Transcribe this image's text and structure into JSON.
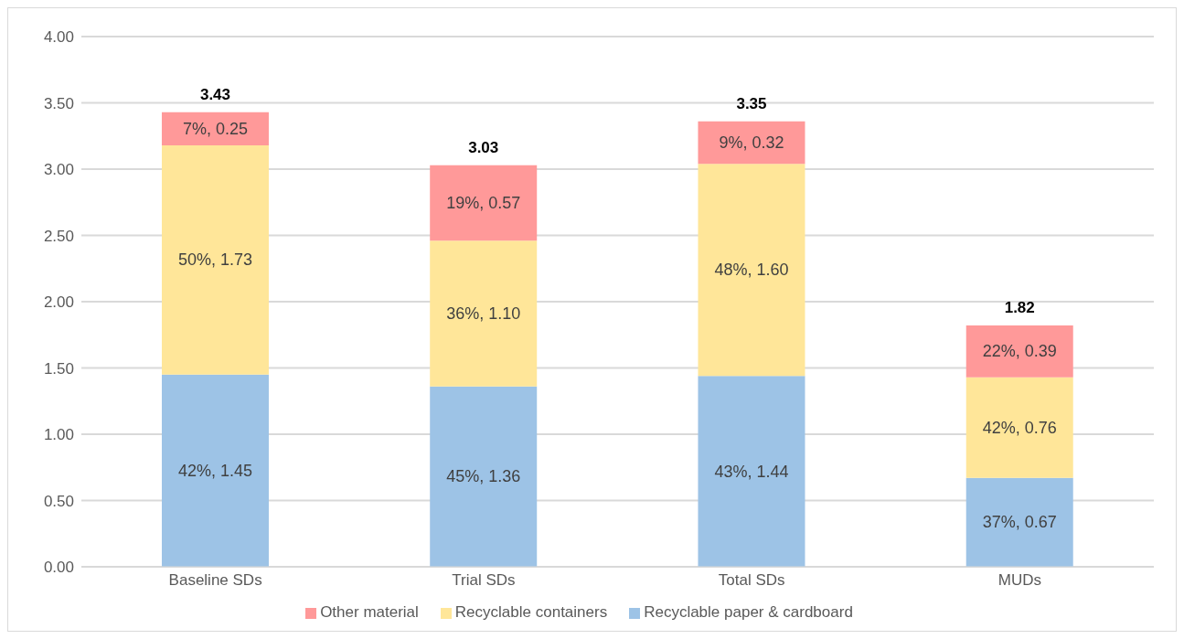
{
  "chart_data": {
    "type": "bar",
    "stacked": true,
    "categories": [
      "Baseline SDs",
      "Trial SDs",
      "Total SDs",
      "MUDs"
    ],
    "series": [
      {
        "name": "Recyclable paper & cardboard",
        "color": "#9dc3e6",
        "values": [
          1.45,
          1.36,
          1.44,
          0.67
        ],
        "value_labels": [
          "42%, 1.45",
          "45%, 1.36",
          "43%, 1.44",
          "37%, 0.67"
        ]
      },
      {
        "name": "Recyclable containers",
        "color": "#ffe699",
        "values": [
          1.73,
          1.1,
          1.6,
          0.76
        ],
        "value_labels": [
          "50%, 1.73",
          "36%, 1.10",
          "48%, 1.60",
          "42%, 0.76"
        ]
      },
      {
        "name": "Other material",
        "color": "#ff9999",
        "values": [
          0.25,
          0.57,
          0.32,
          0.39
        ],
        "value_labels": [
          "7%, 0.25",
          "19%, 0.57",
          "9%, 0.32",
          "22%, 0.39"
        ]
      }
    ],
    "totals": [
      "3.43",
      "3.03",
      "3.35",
      "1.82"
    ],
    "ylim": [
      0,
      4
    ],
    "yticks": [
      {
        "value": 0,
        "label": "0.00"
      },
      {
        "value": 0.5,
        "label": "0.50"
      },
      {
        "value": 1,
        "label": "1.00"
      },
      {
        "value": 1.5,
        "label": "1.50"
      },
      {
        "value": 2,
        "label": "2.00"
      },
      {
        "value": 2.5,
        "label": "2.50"
      },
      {
        "value": 3,
        "label": "3.00"
      },
      {
        "value": 3.5,
        "label": "3.50"
      },
      {
        "value": 4,
        "label": "4.00"
      }
    ],
    "grid": "y",
    "legend": "bottom"
  }
}
